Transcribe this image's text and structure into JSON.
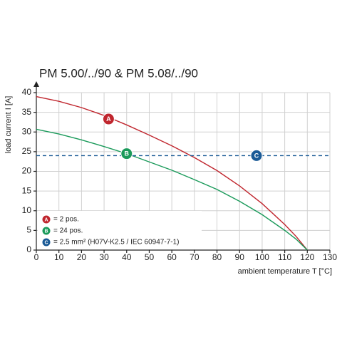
{
  "chart_data": {
    "type": "line",
    "title": "PM 5.00/../90 & PM 5.08/../90",
    "y_label": "load current I [A]",
    "x_label": "ambient temperature T [°C]",
    "xlim": [
      0,
      130
    ],
    "xticks": [
      0,
      10,
      20,
      30,
      40,
      50,
      60,
      70,
      80,
      90,
      100,
      110,
      120,
      130
    ],
    "ylim": [
      0,
      40
    ],
    "yticks": [
      0,
      5,
      10,
      15,
      20,
      25,
      30,
      35,
      40
    ],
    "grid": true,
    "series": [
      {
        "marker": "A",
        "name": "= 2 pos.",
        "color": "#c0262e",
        "x": [
          0,
          10,
          20,
          30,
          40,
          50,
          60,
          70,
          80,
          90,
          100,
          110,
          115,
          120
        ],
        "values": [
          39,
          37.8,
          36.2,
          34.2,
          31.8,
          29.2,
          26.5,
          23.5,
          20.2,
          16.3,
          11.8,
          6.5,
          3.5,
          0
        ],
        "marker_at": {
          "x": 32,
          "y": 33.3
        }
      },
      {
        "marker": "B",
        "name": "= 24 pos.",
        "color": "#1a9a5a",
        "x": [
          0,
          10,
          20,
          30,
          40,
          50,
          60,
          70,
          80,
          90,
          100,
          110,
          115,
          120
        ],
        "values": [
          30.7,
          29.5,
          28,
          26.3,
          24.5,
          22.4,
          20.3,
          17.9,
          15.4,
          12.4,
          9,
          5,
          2.8,
          0
        ],
        "marker_at": {
          "x": 40,
          "y": 24.5
        }
      },
      {
        "marker": "C",
        "name": "= 2.5 mm² (H07V-K2.5 / IEC 60947-7-1)",
        "color": "#1a5a96",
        "dashed": true,
        "x": [
          0,
          130
        ],
        "values": [
          24,
          24
        ],
        "marker_at": {
          "x": 97.5,
          "y": 24
        }
      }
    ]
  }
}
